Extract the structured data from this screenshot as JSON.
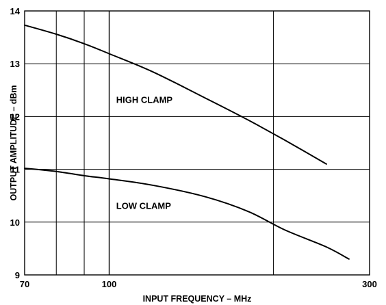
{
  "chart_data": {
    "type": "line",
    "xlabel": "INPUT FREQUENCY – MHz",
    "ylabel": "OUTPUT AMPLITUDE – dBm",
    "xlim": [
      70,
      300
    ],
    "ylim": [
      9,
      14
    ],
    "x_scale": "log",
    "x_ticks": [
      70,
      100,
      300
    ],
    "x_tick_labels": [
      "70",
      "100",
      "300"
    ],
    "x_gridlines": [
      80,
      90,
      100,
      200
    ],
    "y_ticks": [
      9,
      10,
      11,
      12,
      13,
      14
    ],
    "y_tick_labels": [
      "9",
      "10",
      "11",
      "12",
      "13",
      "14"
    ],
    "grid": true,
    "annotations": [
      {
        "text": "HIGH CLAMP",
        "x": 103,
        "y": 12.26
      },
      {
        "text": "LOW CLAMP",
        "x": 103,
        "y": 10.25
      }
    ],
    "series": [
      {
        "points": [
          [
            70,
            13.73
          ],
          [
            80,
            13.56
          ],
          [
            90,
            13.38
          ],
          [
            100,
            13.19
          ],
          [
            120,
            12.85
          ],
          [
            150,
            12.35
          ],
          [
            180,
            11.93
          ],
          [
            210,
            11.55
          ],
          [
            250,
            11.1
          ]
        ]
      },
      {
        "points": [
          [
            70,
            11.02
          ],
          [
            80,
            10.96
          ],
          [
            90,
            10.88
          ],
          [
            100,
            10.82
          ],
          [
            120,
            10.7
          ],
          [
            150,
            10.48
          ],
          [
            180,
            10.2
          ],
          [
            210,
            9.85
          ],
          [
            250,
            9.53
          ],
          [
            275,
            9.3
          ]
        ]
      }
    ]
  }
}
